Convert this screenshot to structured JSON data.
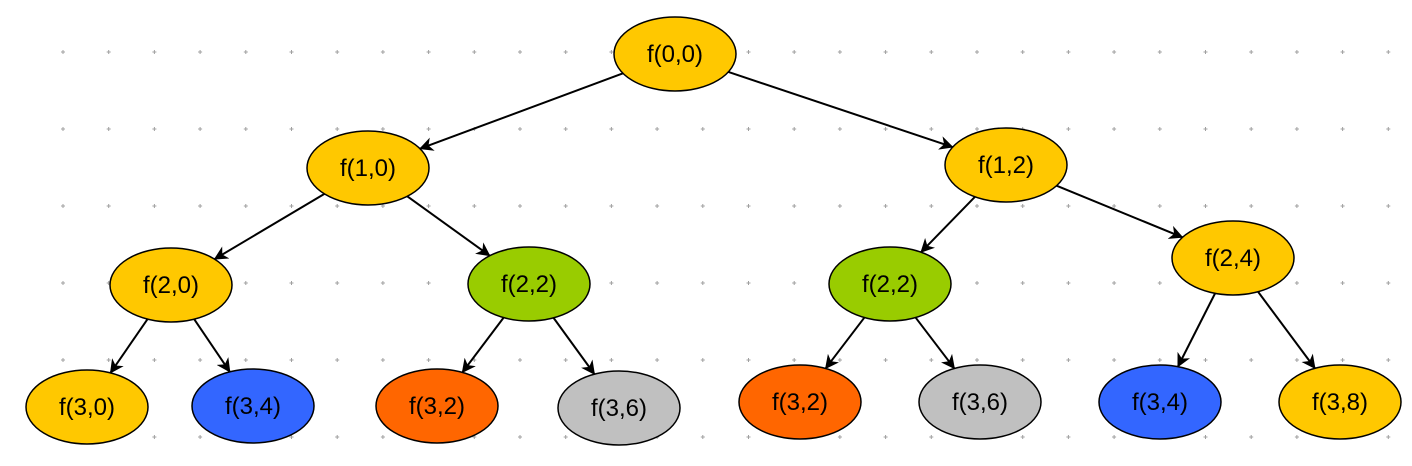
{
  "colors": {
    "yellow": "#FFC800",
    "green": "#99CC00",
    "blue": "#3366FF",
    "orange": "#FF6600",
    "gray": "#C0C0C0",
    "stroke": "#000000",
    "grid_dot": "#A0A0A0"
  },
  "nodes": [
    {
      "id": "f00",
      "label": "f(0,0)",
      "color": "yellow"
    },
    {
      "id": "f10",
      "label": "f(1,0)",
      "color": "yellow"
    },
    {
      "id": "f12",
      "label": "f(1,2)",
      "color": "yellow"
    },
    {
      "id": "f20",
      "label": "f(2,0)",
      "color": "yellow"
    },
    {
      "id": "f22a",
      "label": "f(2,2)",
      "color": "green"
    },
    {
      "id": "f22b",
      "label": "f(2,2)",
      "color": "green"
    },
    {
      "id": "f24",
      "label": "f(2,4)",
      "color": "yellow"
    },
    {
      "id": "f30",
      "label": "f(3,0)",
      "color": "yellow"
    },
    {
      "id": "f34a",
      "label": "f(3,4)",
      "color": "blue"
    },
    {
      "id": "f32a",
      "label": "f(3,2)",
      "color": "orange"
    },
    {
      "id": "f36a",
      "label": "f(3,6)",
      "color": "gray"
    },
    {
      "id": "f32b",
      "label": "f(3,2)",
      "color": "orange"
    },
    {
      "id": "f36b",
      "label": "f(3,6)",
      "color": "gray"
    },
    {
      "id": "f34b",
      "label": "f(3,4)",
      "color": "blue"
    },
    {
      "id": "f38",
      "label": "f(3,8)",
      "color": "yellow"
    }
  ],
  "edges": [
    {
      "from": "f00",
      "to": "f10"
    },
    {
      "from": "f00",
      "to": "f12"
    },
    {
      "from": "f10",
      "to": "f20"
    },
    {
      "from": "f10",
      "to": "f22a"
    },
    {
      "from": "f12",
      "to": "f22b"
    },
    {
      "from": "f12",
      "to": "f24"
    },
    {
      "from": "f20",
      "to": "f30"
    },
    {
      "from": "f20",
      "to": "f34a"
    },
    {
      "from": "f22a",
      "to": "f32a"
    },
    {
      "from": "f22a",
      "to": "f36a"
    },
    {
      "from": "f22b",
      "to": "f32b"
    },
    {
      "from": "f22b",
      "to": "f36b"
    },
    {
      "from": "f24",
      "to": "f34b"
    },
    {
      "from": "f24",
      "to": "f38"
    }
  ]
}
